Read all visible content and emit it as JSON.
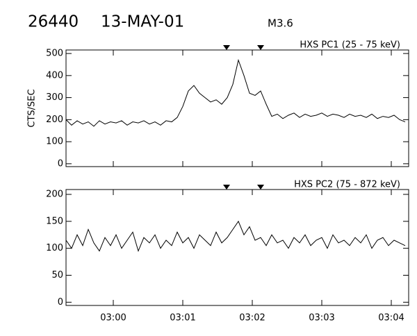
{
  "header": {
    "id": "26440",
    "date": "13-MAY-01",
    "class": "M3.6"
  },
  "chart_data": [
    {
      "type": "line",
      "title": "HXS PC1 (25 - 75 keV)",
      "ylabel": "CTS/SEC",
      "color": "#000000",
      "interval_markers": [
        181.63,
        182.12
      ],
      "xlim": [
        179.32,
        184.25
      ],
      "ylim": [
        -13,
        516
      ],
      "yticks": [
        0,
        100,
        200,
        300,
        400,
        500
      ],
      "x": [
        179.32,
        179.4,
        179.48,
        179.56,
        179.64,
        179.72,
        179.8,
        179.88,
        179.96,
        180.04,
        180.12,
        180.2,
        180.28,
        180.36,
        180.44,
        180.52,
        180.6,
        180.68,
        180.76,
        180.84,
        180.92,
        181.0,
        181.08,
        181.16,
        181.24,
        181.32,
        181.4,
        181.48,
        181.56,
        181.64,
        181.72,
        181.8,
        181.88,
        181.96,
        182.04,
        182.12,
        182.2,
        182.28,
        182.36,
        182.44,
        182.52,
        182.6,
        182.68,
        182.76,
        182.84,
        182.92,
        183.0,
        183.08,
        183.16,
        183.24,
        183.32,
        183.4,
        183.48,
        183.56,
        183.64,
        183.72,
        183.8,
        183.88,
        183.96,
        184.04,
        184.12,
        184.2
      ],
      "values": [
        200,
        175,
        195,
        180,
        190,
        170,
        195,
        180,
        190,
        185,
        195,
        175,
        190,
        185,
        195,
        180,
        190,
        175,
        195,
        190,
        210,
        260,
        330,
        355,
        320,
        300,
        280,
        290,
        270,
        300,
        360,
        470,
        400,
        320,
        310,
        330,
        270,
        215,
        225,
        205,
        220,
        230,
        210,
        225,
        215,
        220,
        230,
        215,
        225,
        220,
        210,
        225,
        215,
        220,
        210,
        225,
        205,
        215,
        210,
        220,
        200,
        190
      ]
    },
    {
      "type": "line",
      "title": "HXS PC2 (75 - 872 keV)",
      "color": "#000000",
      "interval_markers": [
        181.63,
        182.12
      ],
      "xlim": [
        179.32,
        184.25
      ],
      "ylim": [
        -6,
        209
      ],
      "yticks": [
        0,
        50,
        100,
        150,
        200
      ],
      "xticks": [
        {
          "value": 180,
          "label": "03:00"
        },
        {
          "value": 181,
          "label": "03:01"
        },
        {
          "value": 182,
          "label": "03:02"
        },
        {
          "value": 183,
          "label": "03:03"
        },
        {
          "value": 184,
          "label": "03:04"
        }
      ],
      "x": [
        179.32,
        179.4,
        179.48,
        179.56,
        179.64,
        179.72,
        179.8,
        179.88,
        179.96,
        180.04,
        180.12,
        180.2,
        180.28,
        180.36,
        180.44,
        180.52,
        180.6,
        180.68,
        180.76,
        180.84,
        180.92,
        181.0,
        181.08,
        181.16,
        181.24,
        181.32,
        181.4,
        181.48,
        181.56,
        181.64,
        181.72,
        181.8,
        181.88,
        181.96,
        182.04,
        182.12,
        182.2,
        182.28,
        182.36,
        182.44,
        182.52,
        182.6,
        182.68,
        182.76,
        182.84,
        182.92,
        183.0,
        183.08,
        183.16,
        183.24,
        183.32,
        183.4,
        183.48,
        183.56,
        183.64,
        183.72,
        183.8,
        183.88,
        183.96,
        184.04,
        184.12,
        184.2
      ],
      "values": [
        115,
        100,
        125,
        105,
        135,
        110,
        95,
        120,
        105,
        125,
        100,
        115,
        130,
        95,
        120,
        110,
        125,
        100,
        115,
        105,
        130,
        110,
        120,
        100,
        125,
        115,
        105,
        130,
        110,
        120,
        135,
        150,
        125,
        140,
        115,
        120,
        105,
        125,
        110,
        115,
        100,
        120,
        110,
        125,
        105,
        115,
        120,
        100,
        125,
        110,
        115,
        105,
        120,
        110,
        125,
        100,
        115,
        120,
        105,
        115,
        110,
        105
      ]
    }
  ]
}
